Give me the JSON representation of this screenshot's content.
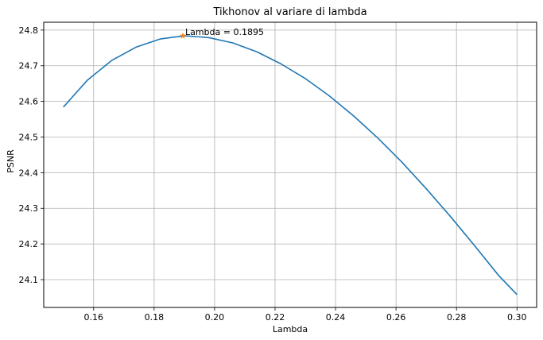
{
  "chart_data": {
    "type": "line",
    "title": "Tikhonov al variare di lambda",
    "xlabel": "Lambda",
    "ylabel": "PSNR",
    "xlim": [
      0.1435,
      0.3065
    ],
    "ylim": [
      24.022,
      24.822
    ],
    "grid": true,
    "xticks": [
      "0.16",
      "0.18",
      "0.20",
      "0.22",
      "0.24",
      "0.26",
      "0.28",
      "0.30"
    ],
    "xtick_values": [
      0.16,
      0.18,
      0.2,
      0.22,
      0.24,
      0.26,
      0.28,
      0.3
    ],
    "yticks": [
      "24.1",
      "24.2",
      "24.3",
      "24.4",
      "24.5",
      "24.6",
      "24.7",
      "24.8"
    ],
    "ytick_values": [
      24.1,
      24.2,
      24.3,
      24.4,
      24.5,
      24.6,
      24.7,
      24.8
    ],
    "series": [
      {
        "color": "#1f77b4",
        "x": [
          0.15,
          0.158,
          0.166,
          0.174,
          0.182,
          0.19,
          0.198,
          0.206,
          0.214,
          0.222,
          0.23,
          0.238,
          0.246,
          0.254,
          0.262,
          0.27,
          0.278,
          0.286,
          0.294,
          0.3
        ],
        "y": [
          24.584,
          24.66,
          24.715,
          24.752,
          24.775,
          24.784,
          24.779,
          24.764,
          24.739,
          24.705,
          24.664,
          24.615,
          24.559,
          24.497,
          24.429,
          24.355,
          24.277,
          24.195,
          24.111,
          24.058
        ]
      }
    ],
    "marker": {
      "x": 0.1895,
      "y": 24.784,
      "color": "#ff7f0e",
      "symbol": "star",
      "label": "Lambda = 0.1895"
    }
  }
}
